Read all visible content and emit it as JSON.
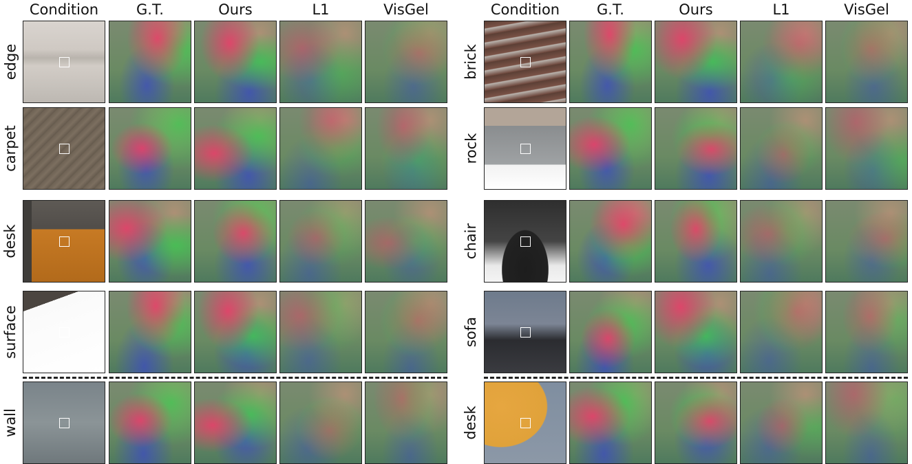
{
  "headers": [
    "Condition",
    "G.T.",
    "Ours",
    "L1",
    "VisGel"
  ],
  "left_rows": [
    "edge",
    "carpet",
    "desk",
    "surface",
    "wall"
  ],
  "right_rows": [
    "brick",
    "rock",
    "chair",
    "sofa",
    "desk"
  ],
  "colors": {
    "tactile_base": "#6a8a63",
    "tactile_red": "#ee3b6a",
    "tactile_green": "#3fc852",
    "tactile_blue": "#3a47c9",
    "tactile_peach": "#d8967c",
    "separator": "#222222"
  }
}
